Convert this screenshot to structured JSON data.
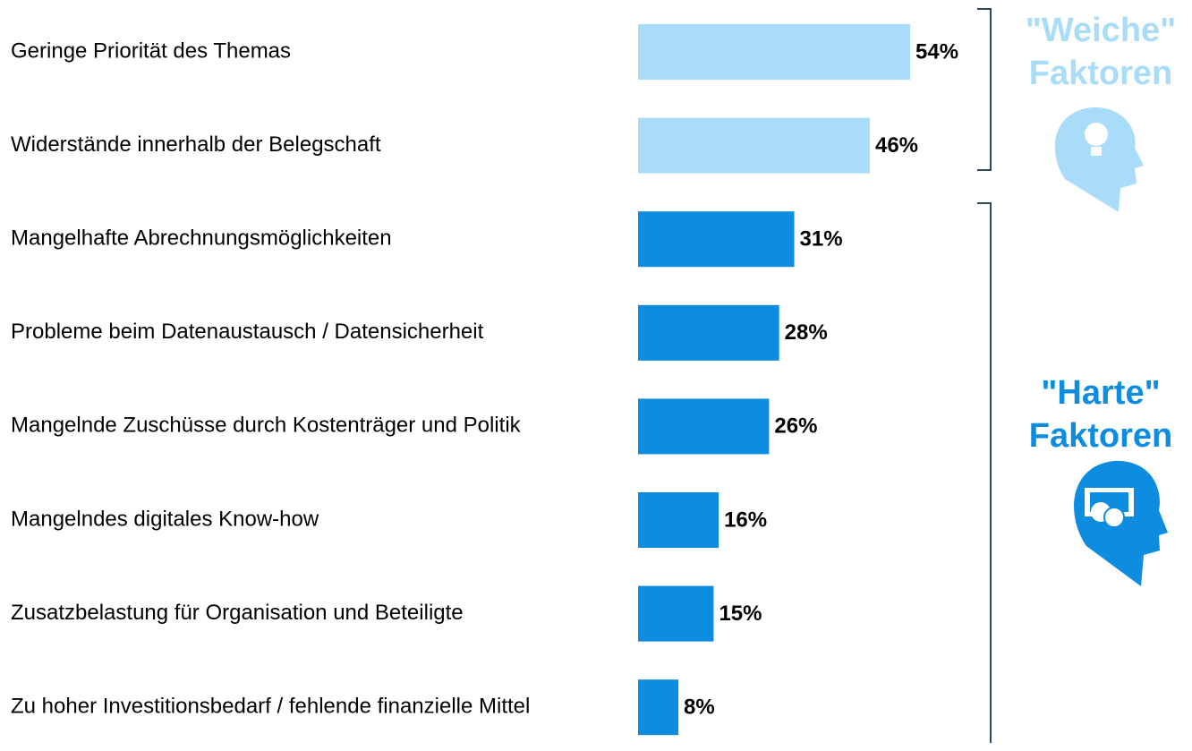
{
  "chart_data": {
    "type": "bar",
    "orientation": "horizontal",
    "categories": [
      "Geringe Priorität des Themas",
      "Widerstände innerhalb der Belegschaft",
      "Mangelhafte Abrechnungsmöglichkeiten",
      "Probleme beim Datenaustausch / Datensicherheit",
      "Mangelnde Zuschüsse durch Kostenträger und Politik",
      "Mangelndes digitales Know-how",
      "Zusatzbelastung für Organisation und Beteiligte",
      "Zu hoher Investitionsbedarf / fehlende finanzielle Mittel"
    ],
    "series": [
      {
        "name": "\"Weiche\" Faktoren",
        "color": "#a9dcf9",
        "values": [
          54,
          46,
          null,
          null,
          null,
          null,
          null,
          null
        ],
        "value_labels": [
          "54%",
          "46%",
          null,
          null,
          null,
          null,
          null,
          null
        ]
      },
      {
        "name": "\"Harte\" Faktoren",
        "color": "#0d8ce0",
        "values": [
          null,
          null,
          31,
          28,
          26,
          16,
          15,
          8
        ],
        "value_labels": [
          null,
          null,
          "31%",
          "28%",
          "26%",
          "16%",
          "15%",
          "8%"
        ]
      }
    ]
  }
}
